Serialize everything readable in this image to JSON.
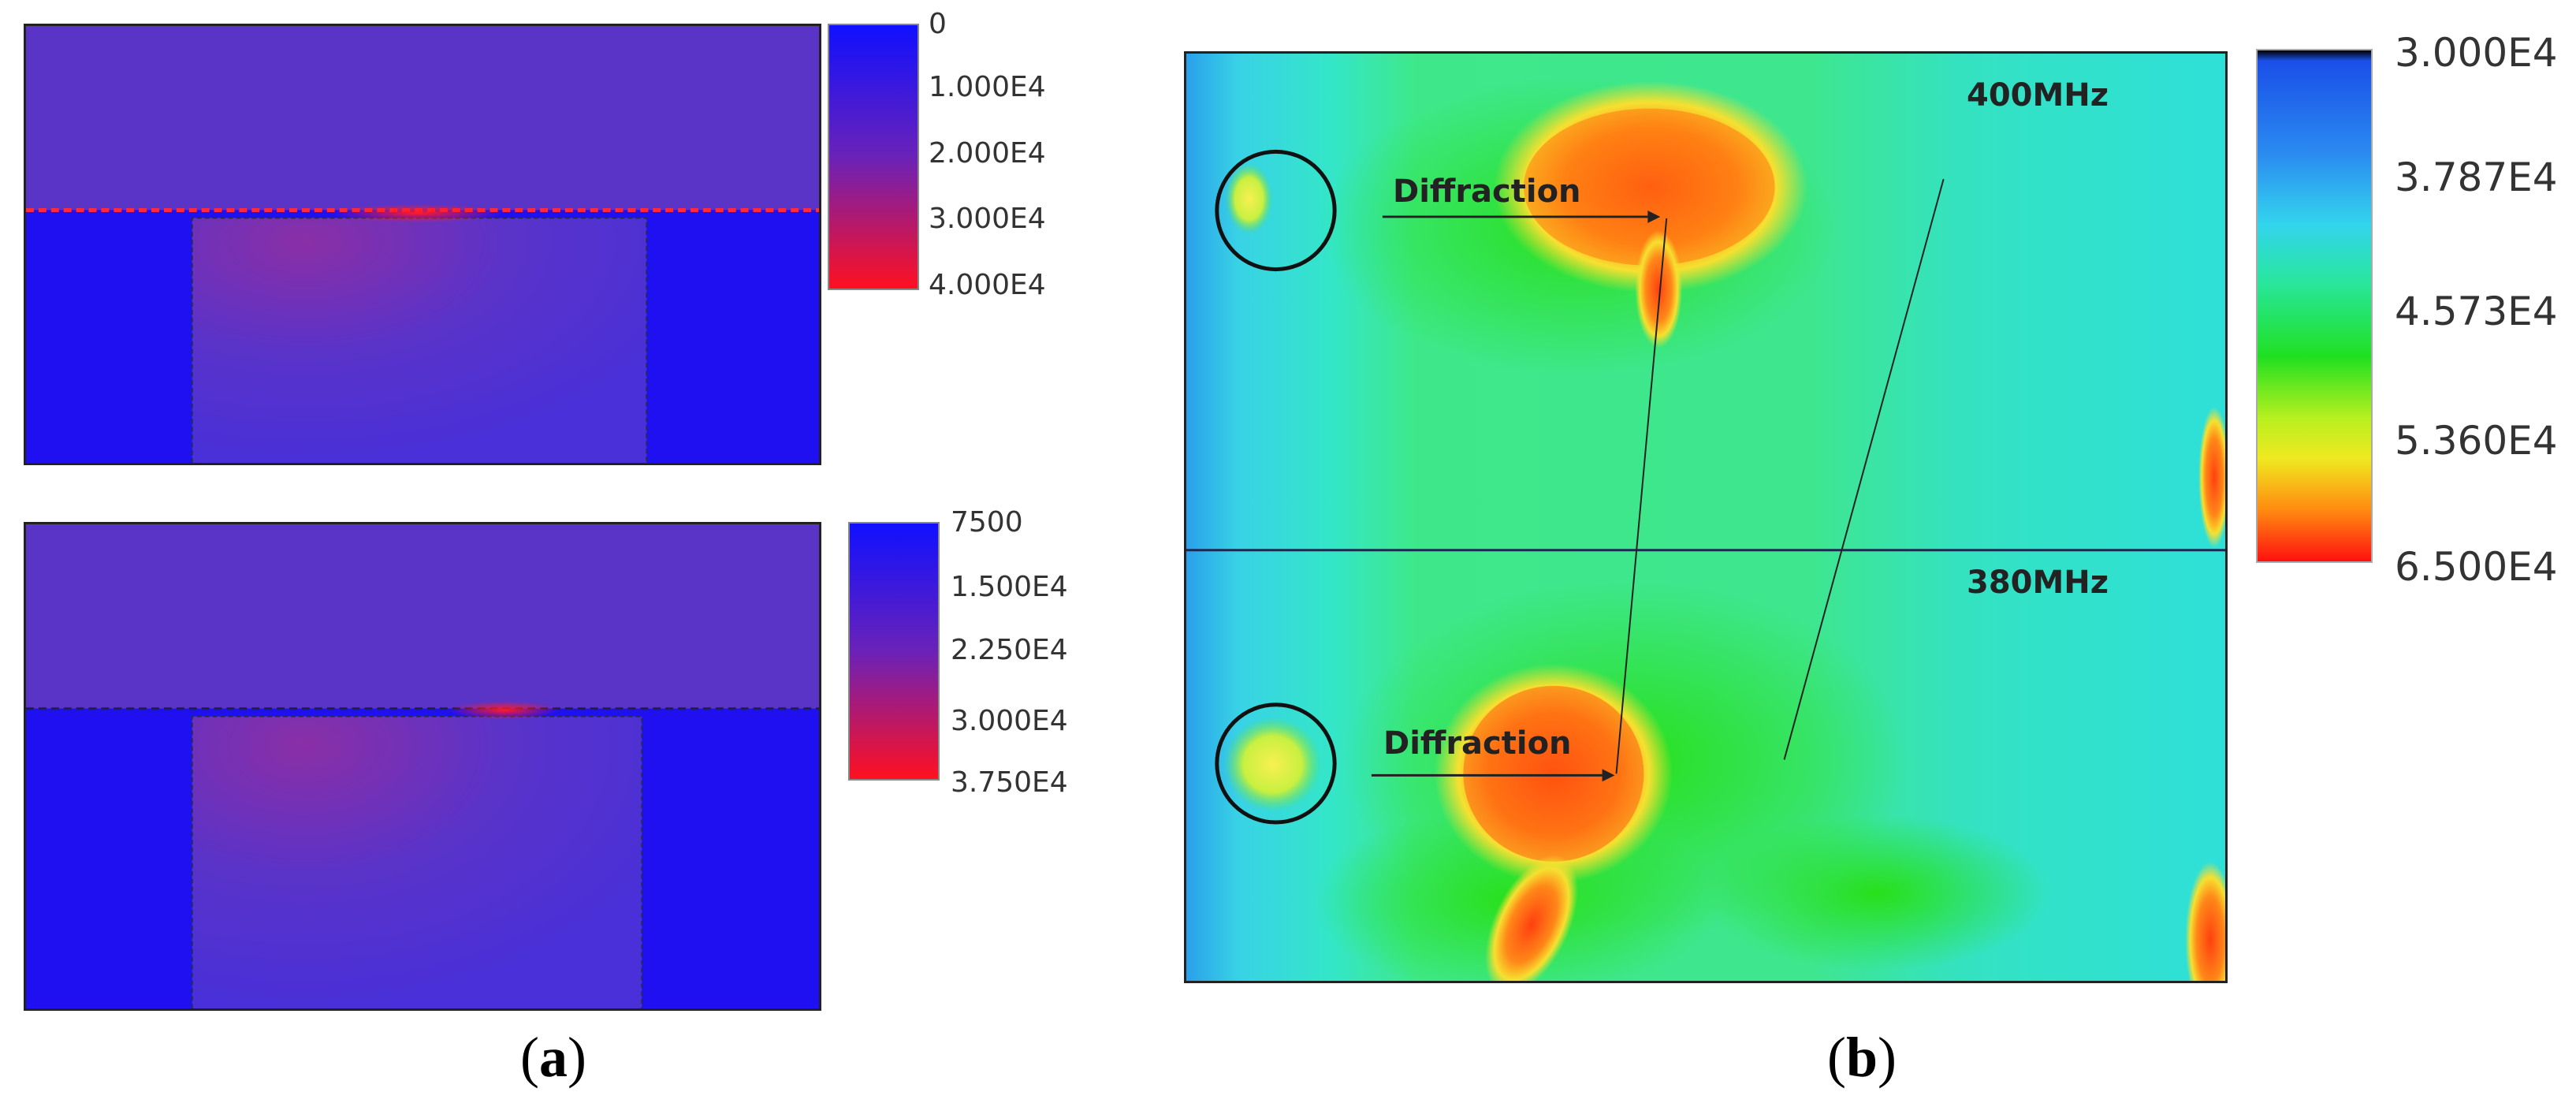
{
  "panel_a": {
    "caption_letter": "a",
    "top": {
      "colorbar_ticks": [
        "0",
        "1.000E4",
        "2.000E4",
        "3.000E4",
        "4.000E4"
      ]
    },
    "bottom": {
      "colorbar_ticks": [
        "7500",
        "1.500E4",
        "2.250E4",
        "3.000E4",
        "3.750E4"
      ]
    }
  },
  "panel_b": {
    "caption_letter": "b",
    "freq_top": "400MHz",
    "freq_bottom": "380MHz",
    "annotation_top": "Diffraction",
    "annotation_bottom": "Diffraction",
    "colorbar_ticks": [
      "3.000E4",
      "3.787E4",
      "4.573E4",
      "5.360E4",
      "6.500E4"
    ]
  },
  "colors": {
    "plot_a_bg_top": "#5a33c7",
    "plot_a_bg_bottom": "#1f10f2",
    "plot_a_hot": "#ff1a2a",
    "cmap_b": [
      "#000000",
      "#1a4fe8",
      "#33d4ee",
      "#20e020",
      "#e6f020",
      "#ff8a10",
      "#ff1010"
    ]
  }
}
